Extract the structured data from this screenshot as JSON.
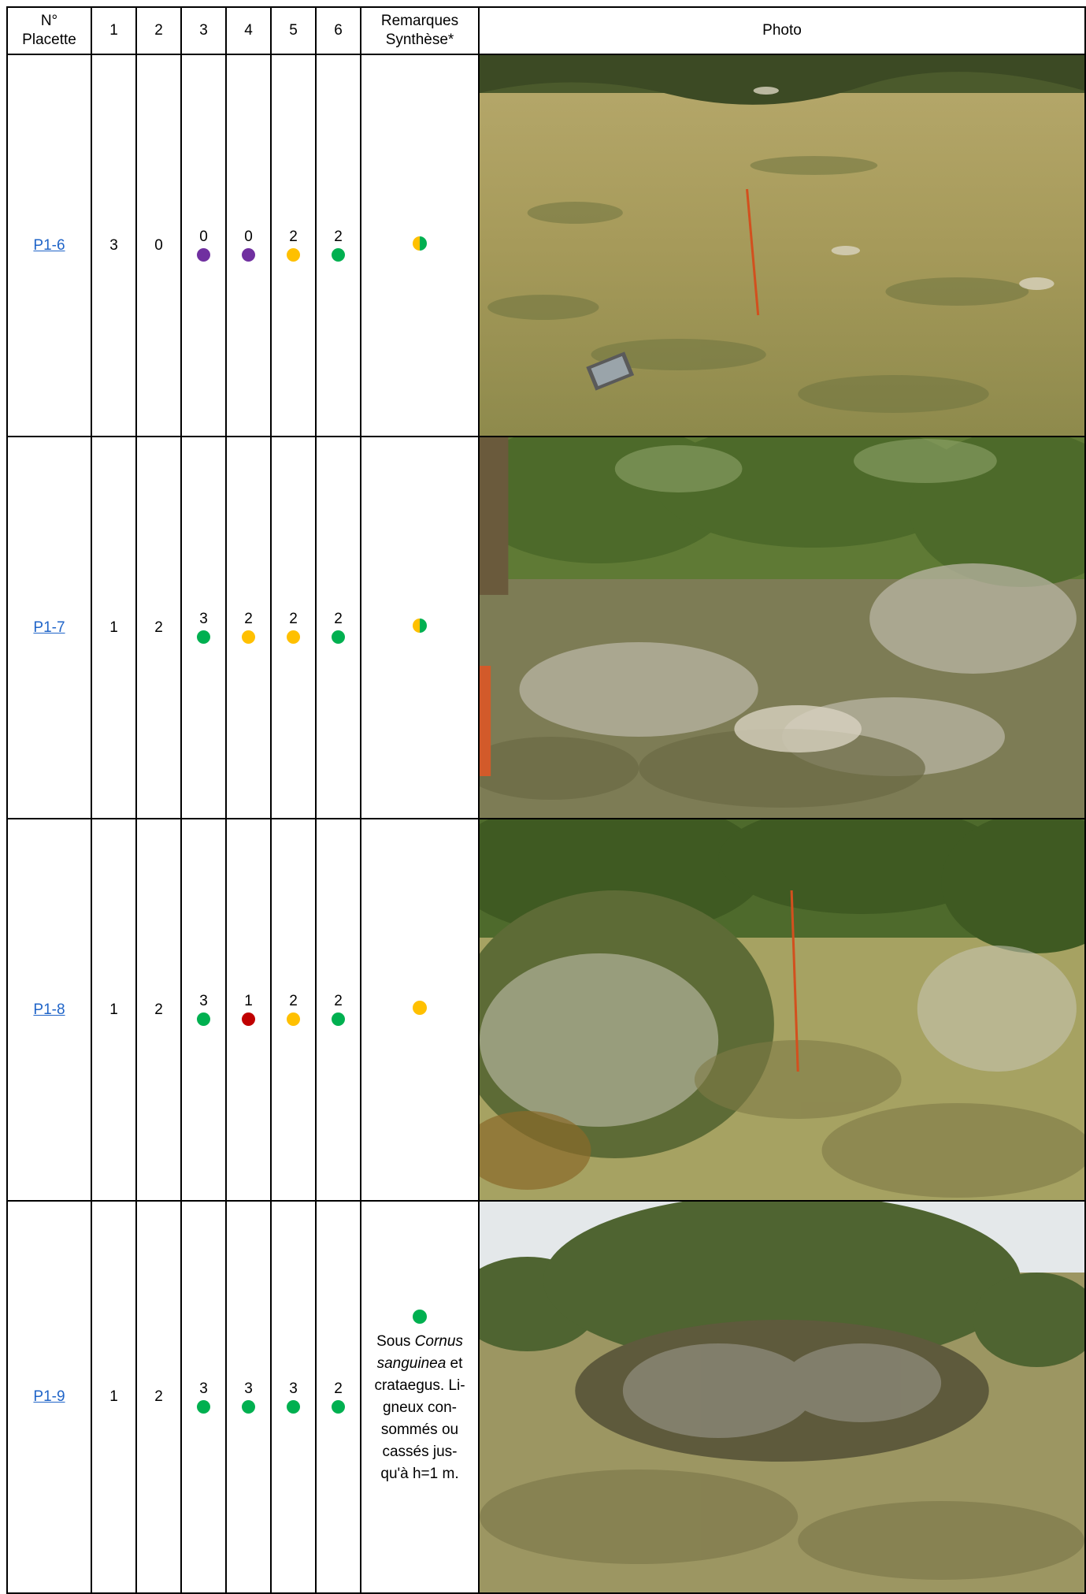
{
  "colors": {
    "green": "#00b050",
    "yellow": "#ffc000",
    "purple": "#7030a0",
    "red": "#c00000",
    "link": "#1f64c8"
  },
  "header": {
    "placette_line1": "N°",
    "placette_line2": "Placette",
    "c1": "1",
    "c2": "2",
    "c3": "3",
    "c4": "4",
    "c5": "5",
    "c6": "6",
    "remarques_line1": "Remarques",
    "remarques_line2": "Synthèse*",
    "photo": "Photo"
  },
  "rows": [
    {
      "id": "P1-6",
      "c1": "3",
      "c2": "0",
      "c3": {
        "v": "0",
        "color": "purple"
      },
      "c4": {
        "v": "0",
        "color": "purple"
      },
      "c5": {
        "v": "2",
        "color": "yellow"
      },
      "c6": {
        "v": "2",
        "color": "green"
      },
      "synthese": "half-yellow-green",
      "photo": "grassy meadow with orange stake and clipboard"
    },
    {
      "id": "P1-7",
      "c1": "1",
      "c2": "2",
      "c3": {
        "v": "3",
        "color": "green"
      },
      "c4": {
        "v": "2",
        "color": "yellow"
      },
      "c5": {
        "v": "2",
        "color": "yellow"
      },
      "c6": {
        "v": "2",
        "color": "green"
      },
      "synthese": "half-yellow-green",
      "photo": "shrubby clearing with dry thorny bushes"
    },
    {
      "id": "P1-8",
      "c1": "1",
      "c2": "2",
      "c3": {
        "v": "3",
        "color": "green"
      },
      "c4": {
        "v": "1",
        "color": "red"
      },
      "c5": {
        "v": "2",
        "color": "yellow"
      },
      "c6": {
        "v": "2",
        "color": "green"
      },
      "synthese": "yellow",
      "photo": "shrub and hawthorn edge with grassland"
    },
    {
      "id": "P1-9",
      "c1": "1",
      "c2": "2",
      "c3": {
        "v": "3",
        "color": "green"
      },
      "c4": {
        "v": "3",
        "color": "green"
      },
      "c5": {
        "v": "3",
        "color": "green"
      },
      "c6": {
        "v": "2",
        "color": "green"
      },
      "synthese": "green",
      "remark": {
        "t1": "Sous ",
        "t2": "Cornus",
        "t3": "sanguinea",
        "t4": " et",
        "t5": "crataegus. Li-",
        "t6": "gneux con-",
        "t7": "sommés ou",
        "t8": "cassés jus-",
        "t9": "qu'à h=1 m."
      },
      "photo": "dense shrub clump in grassland"
    }
  ]
}
